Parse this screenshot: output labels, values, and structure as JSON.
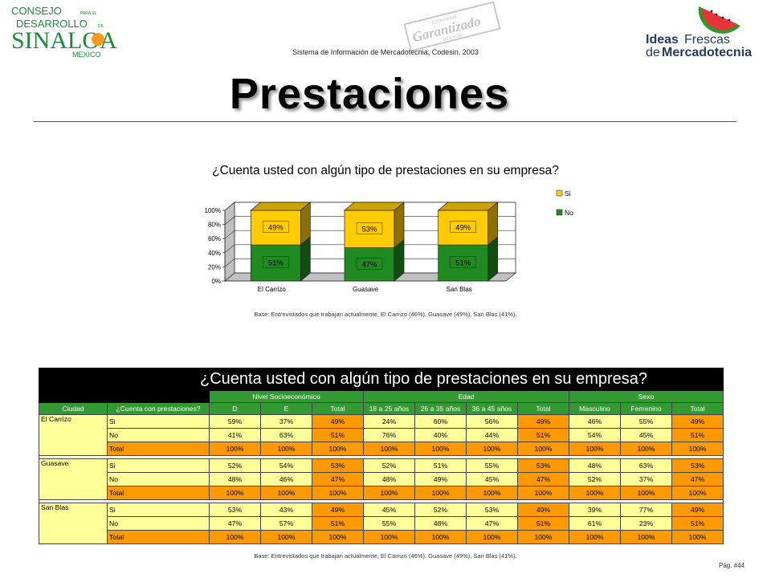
{
  "header": {
    "subtitle": "Sistema de Información de Mercadotecnia, Codesin, 2003",
    "logo_left": {
      "line1": "CONSEJO",
      "line2": "DESARROLLO",
      "line3": "SINALOA",
      "line4": "MEXICO",
      "small1": "PARA EL",
      "small2": "DE"
    },
    "stamp": {
      "line1": "ESTRATEGIA",
      "line2": "Garantizado",
      "line3": "DE ÉXITO"
    },
    "logo_right": {
      "line1a": "Ideas",
      "line1b": "Frescas",
      "line2a": "de",
      "line2b": "Mercadotecnia"
    },
    "icons": [
      "sun-icon",
      "watermelon-icon",
      "stamp-icon"
    ]
  },
  "page": {
    "title": "Prestaciones",
    "page_number": "Pág. #44"
  },
  "chart_data": {
    "type": "bar",
    "stacked": true,
    "three_d": true,
    "title": "¿Cuenta usted con algún tipo de prestaciones en su empresa?",
    "categories": [
      "El Carrizo",
      "Guasave",
      "San Blas"
    ],
    "series": [
      {
        "name": "No",
        "values": [
          51,
          47,
          51
        ],
        "labels": [
          "51%",
          "47%",
          "51%"
        ],
        "color": "#1f8a1f"
      },
      {
        "name": "Si",
        "values": [
          49,
          53,
          49
        ],
        "labels": [
          "49%",
          "53%",
          "49%"
        ],
        "color": "#ffcc00"
      }
    ],
    "yticks": [
      "0%",
      "20%",
      "40%",
      "60%",
      "80%",
      "100%"
    ],
    "ylim": [
      0,
      100
    ],
    "legend_position": "right",
    "grid": true,
    "base_note": "Base: Entrevistados que trabajan actualmente, El Carrizo (46%), Guasave (49%), San Blas (41%)."
  },
  "table": {
    "title": "¿Cuenta usted con algún tipo de prestaciones en su empresa?",
    "group_headers": [
      {
        "label": "Nivel Socioeconómico",
        "span": 3
      },
      {
        "label": "Edad",
        "span": 4
      },
      {
        "label": "Sexo",
        "span": 3
      }
    ],
    "columns": [
      "Ciudad",
      "¿Cuenta con prestaciones?",
      "D",
      "E",
      "Total",
      "18 a 25 años",
      "26 a 35 años",
      "36 a 45 años",
      "Total",
      "Masculino",
      "Femenino",
      "Total"
    ],
    "cities": [
      {
        "name": "El Carrizo",
        "rows": [
          {
            "label": "Si",
            "values": [
              "59%",
              "37%",
              "49%",
              "24%",
              "60%",
              "56%",
              "49%",
              "46%",
              "55%",
              "49%"
            ]
          },
          {
            "label": "No",
            "values": [
              "41%",
              "63%",
              "51%",
              "76%",
              "40%",
              "44%",
              "51%",
              "54%",
              "45%",
              "51%"
            ]
          },
          {
            "label": "Total",
            "values": [
              "100%",
              "100%",
              "100%",
              "100%",
              "100%",
              "100%",
              "100%",
              "100%",
              "100%",
              "100%"
            ]
          }
        ]
      },
      {
        "name": "Guasave",
        "rows": [
          {
            "label": "Si",
            "values": [
              "52%",
              "54%",
              "53%",
              "52%",
              "51%",
              "55%",
              "53%",
              "48%",
              "63%",
              "53%"
            ]
          },
          {
            "label": "No",
            "values": [
              "48%",
              "46%",
              "47%",
              "48%",
              "49%",
              "45%",
              "47%",
              "52%",
              "37%",
              "47%"
            ]
          },
          {
            "label": "Total",
            "values": [
              "100%",
              "100%",
              "100%",
              "100%",
              "100%",
              "100%",
              "100%",
              "100%",
              "100%",
              "100%"
            ]
          }
        ]
      },
      {
        "name": "San Blas",
        "rows": [
          {
            "label": "Si",
            "values": [
              "53%",
              "43%",
              "49%",
              "45%",
              "52%",
              "53%",
              "49%",
              "39%",
              "77%",
              "49%"
            ]
          },
          {
            "label": "No",
            "values": [
              "47%",
              "57%",
              "51%",
              "55%",
              "48%",
              "47%",
              "51%",
              "61%",
              "23%",
              "51%"
            ]
          },
          {
            "label": "Total",
            "values": [
              "100%",
              "100%",
              "100%",
              "100%",
              "100%",
              "100%",
              "100%",
              "100%",
              "100%",
              "100%"
            ]
          }
        ]
      }
    ],
    "base_note": "Base: Entrevistados que trabajan actualmente, El Carrizo (46%), Guasave (49%), San Blas (41%)."
  },
  "colors": {
    "yellow": "#ffff99",
    "orange": "#ff9900",
    "green_header": "#339933",
    "bar_si": "#ffcc00",
    "bar_no": "#1f8a1f"
  }
}
